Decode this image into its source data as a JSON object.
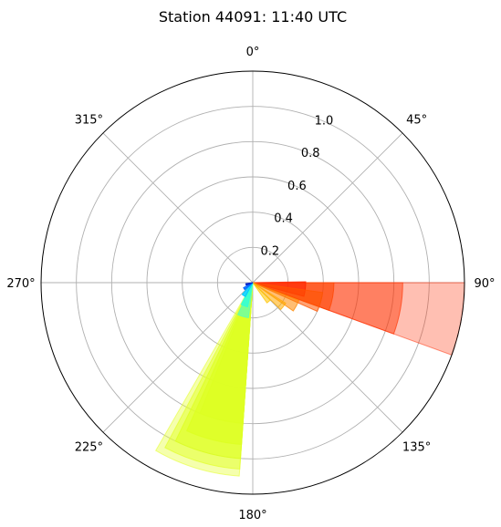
{
  "chart_data": {
    "type": "polar-bar",
    "title": "Station 44091: 11:40 UTC",
    "theta_direction": "clockwise",
    "theta_zero": "north",
    "angle_ticks": [
      "0°",
      "45°",
      "90°",
      "135°",
      "180°",
      "225°",
      "270°",
      "315°"
    ],
    "radial_ticks": [
      "0.2",
      "0.4",
      "0.6",
      "0.8",
      "1.0"
    ],
    "rmax": 1.2,
    "grid": true,
    "bars": [
      {
        "theta": 100,
        "width": 20,
        "r": 1.2,
        "color": "#ff2a00",
        "alpha": 0.3
      },
      {
        "theta": 100,
        "width": 20,
        "r": 0.85,
        "color": "#ff3300",
        "alpha": 0.45
      },
      {
        "theta": 100,
        "width": 20,
        "r": 0.46,
        "color": "#ff4500",
        "alpha": 0.55
      },
      {
        "theta": 97,
        "width": 16,
        "r": 0.3,
        "color": "#ff2200",
        "alpha": 0.6
      },
      {
        "theta": 106,
        "width": 16,
        "r": 0.4,
        "color": "#ff5500",
        "alpha": 0.55
      },
      {
        "theta": 118,
        "width": 14,
        "r": 0.28,
        "color": "#ff8800",
        "alpha": 0.55
      },
      {
        "theta": 128,
        "width": 12,
        "r": 0.22,
        "color": "#ffaa00",
        "alpha": 0.55
      },
      {
        "theta": 140,
        "width": 10,
        "r": 0.14,
        "color": "#ffc400",
        "alpha": 0.55
      },
      {
        "theta": 197,
        "width": 26,
        "r": 1.1,
        "color": "#e6ff33",
        "alpha": 0.4
      },
      {
        "theta": 196,
        "width": 24,
        "r": 1.06,
        "color": "#e2ff2a",
        "alpha": 0.5
      },
      {
        "theta": 195,
        "width": 22,
        "r": 1.0,
        "color": "#ddff22",
        "alpha": 0.6
      },
      {
        "theta": 194,
        "width": 20,
        "r": 0.92,
        "color": "#ddff22",
        "alpha": 0.7
      },
      {
        "theta": 193,
        "width": 18,
        "r": 0.8,
        "color": "#ddff22",
        "alpha": 0.7
      },
      {
        "theta": 196,
        "width": 18,
        "r": 0.2,
        "color": "#66ffaa",
        "alpha": 0.8
      },
      {
        "theta": 200,
        "width": 16,
        "r": 0.14,
        "color": "#33ffd6",
        "alpha": 0.85
      },
      {
        "theta": 215,
        "width": 14,
        "r": 0.09,
        "color": "#00ccff",
        "alpha": 0.85
      },
      {
        "theta": 235,
        "width": 12,
        "r": 0.06,
        "color": "#0066ff",
        "alpha": 0.85
      },
      {
        "theta": 255,
        "width": 12,
        "r": 0.04,
        "color": "#0022cc",
        "alpha": 0.9
      }
    ]
  }
}
